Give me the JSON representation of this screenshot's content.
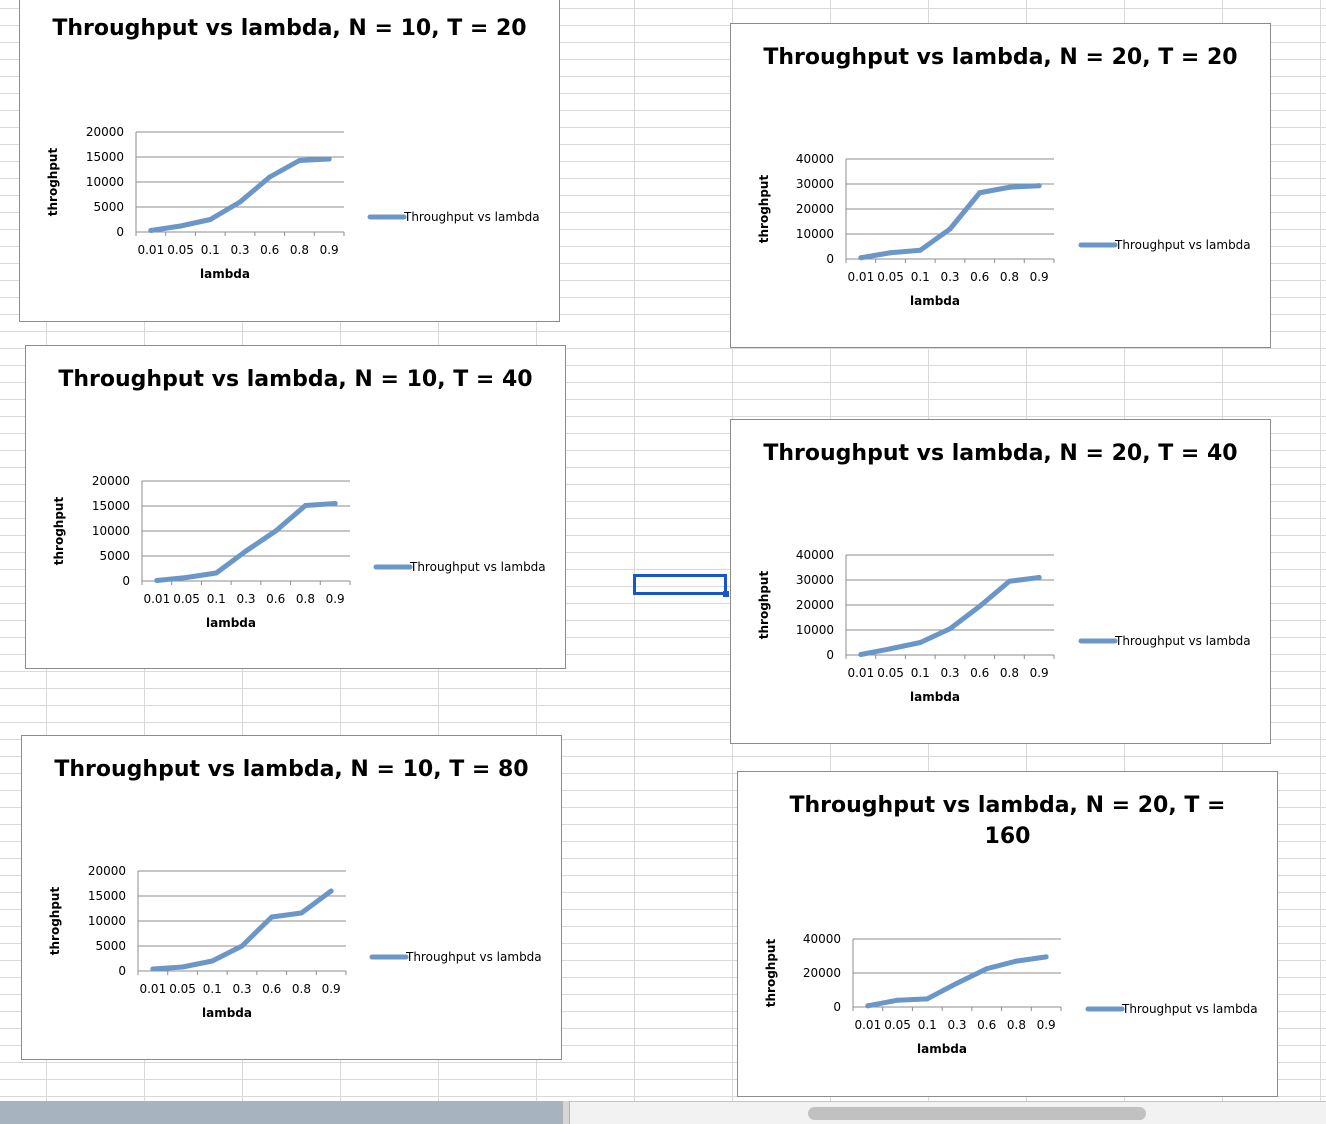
{
  "colors": {
    "series": "#6b96c8",
    "grid": "#8c8c8c",
    "selection": "#1a56c8"
  },
  "charts": [
    {
      "id": "n10-t20",
      "title": "Throughput vs lambda, N = 10, T = 20",
      "chart_data": {
        "type": "line",
        "title": "Throughput vs lambda, N = 10, T = 20",
        "xlabel": "lambda",
        "ylabel": "throghput",
        "categories": [
          "0.01",
          "0.05",
          "0.1",
          "0.3",
          "0.6",
          "0.8",
          "0.9"
        ],
        "yticks": [
          "0",
          "5000",
          "10000",
          "15000",
          "20000"
        ],
        "ylim": [
          0,
          20000
        ],
        "grid": true,
        "legend_position": "right",
        "series": [
          {
            "name": "Throughput vs lambda",
            "values": [
              300,
              1200,
              2500,
              6000,
              11000,
              14300,
              14600
            ]
          }
        ]
      }
    },
    {
      "id": "n20-t20",
      "title": "Throughput vs lambda, N = 20, T = 20",
      "chart_data": {
        "type": "line",
        "title": "Throughput vs lambda, N = 20, T = 20",
        "xlabel": "lambda",
        "ylabel": "throghput",
        "categories": [
          "0.01",
          "0.05",
          "0.1",
          "0.3",
          "0.6",
          "0.8",
          "0.9"
        ],
        "yticks": [
          "0",
          "10000",
          "20000",
          "30000",
          "40000"
        ],
        "ylim": [
          0,
          40000
        ],
        "grid": true,
        "legend_position": "right",
        "series": [
          {
            "name": "Throughput vs lambda",
            "values": [
              500,
              2500,
              3500,
              12000,
              26500,
              28700,
              29300
            ]
          }
        ]
      }
    },
    {
      "id": "n10-t40",
      "title": "Throughput vs lambda, N = 10, T = 40",
      "chart_data": {
        "type": "line",
        "title": "Throughput vs lambda, N = 10, T = 40",
        "xlabel": "lambda",
        "ylabel": "throghput",
        "categories": [
          "0.01",
          "0.05",
          "0.1",
          "0.3",
          "0.6",
          "0.8",
          "0.9"
        ],
        "yticks": [
          "0",
          "5000",
          "10000",
          "15000",
          "20000"
        ],
        "ylim": [
          0,
          20000
        ],
        "grid": true,
        "legend_position": "right",
        "series": [
          {
            "name": "Throughput vs lambda",
            "values": [
              100,
              700,
              1600,
              6000,
              10000,
              15100,
              15500
            ]
          }
        ]
      }
    },
    {
      "id": "n20-t40",
      "title": "Throughput vs lambda, N = 20, T = 40",
      "chart_data": {
        "type": "line",
        "title": "Throughput vs lambda, N = 20, T = 40",
        "xlabel": "lambda",
        "ylabel": "throghput",
        "categories": [
          "0.01",
          "0.05",
          "0.1",
          "0.3",
          "0.6",
          "0.8",
          "0.9"
        ],
        "yticks": [
          "0",
          "10000",
          "20000",
          "30000",
          "40000"
        ],
        "ylim": [
          0,
          40000
        ],
        "grid": true,
        "legend_position": "right",
        "series": [
          {
            "name": "Throughput vs lambda",
            "values": [
              200,
              2500,
              5000,
              10500,
              19500,
              29500,
              31000
            ]
          }
        ]
      }
    },
    {
      "id": "n10-t80",
      "title": "Throughput vs lambda, N = 10, T = 80",
      "chart_data": {
        "type": "line",
        "title": "Throughput vs lambda, N = 10, T = 80",
        "xlabel": "lambda",
        "ylabel": "throghput",
        "categories": [
          "0.01",
          "0.05",
          "0.1",
          "0.3",
          "0.6",
          "0.8",
          "0.9"
        ],
        "yticks": [
          "0",
          "5000",
          "10000",
          "15000",
          "20000"
        ],
        "ylim": [
          0,
          20000
        ],
        "grid": true,
        "legend_position": "right",
        "series": [
          {
            "name": "Throughput vs lambda",
            "values": [
              400,
              800,
              2000,
              5000,
              10800,
              11600,
              16000
            ]
          }
        ]
      }
    },
    {
      "id": "n20-t160",
      "title": "Throughput vs lambda, N = 20, T = 160",
      "title_lines": [
        "Throughput vs lambda, N = 20, T =",
        "160"
      ],
      "chart_data": {
        "type": "line",
        "title": "Throughput vs lambda, N = 20, T = 160",
        "xlabel": "lambda",
        "ylabel": "throghput",
        "categories": [
          "0.01",
          "0.05",
          "0.1",
          "0.3",
          "0.6",
          "0.8",
          "0.9"
        ],
        "yticks": [
          "0",
          "20000",
          "40000"
        ],
        "ylim": [
          0,
          40000
        ],
        "grid": true,
        "legend_position": "right",
        "series": [
          {
            "name": "Throughput vs lambda",
            "values": [
              700,
              4000,
              4800,
              14000,
              22500,
              27000,
              29500
            ]
          }
        ]
      }
    }
  ]
}
